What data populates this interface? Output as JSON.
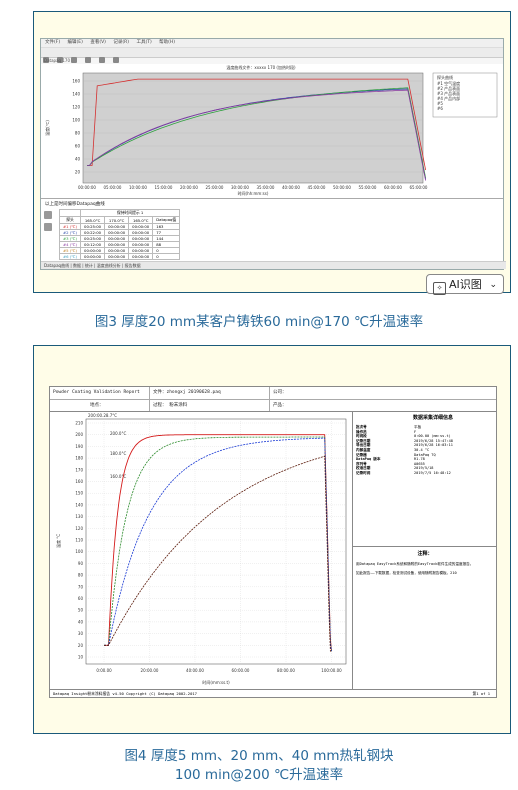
{
  "figure3": {
    "caption": "图3 厚度20 mm某客户铸铁60 min@170 ℃升温速率",
    "menu": [
      "文件(F)",
      "编辑(E)",
      "查看(V)",
      "记录(R)",
      "工具(T)",
      "帮助(H)"
    ],
    "tab_label": "Datapaq 170",
    "chart_title": "温度曲线文件：xxxxx 170 (加热时段)",
    "y_axis_label": "温度(℃)",
    "x_axis_label": "时间(hh:mm:ss)",
    "y_ticks": [
      "160",
      "140",
      "120",
      "100",
      "80",
      "60",
      "40",
      "20"
    ],
    "x_ticks": [
      "00:00:00",
      "05:00:00",
      "10:00:00",
      "15:00:00",
      "20:00:00",
      "25:00:00",
      "30:00:00",
      "35:00:00",
      "40:00:00",
      "45:00:00",
      "50:00:00",
      "55:00:00",
      "60:00:00",
      "65:00:00"
    ],
    "legend_title": "探头曲线",
    "legend_items": [
      "#1 空气温度",
      "#2 产品表面",
      "#3 产品表面",
      "#4 产品内部",
      "#5",
      "#6"
    ],
    "bottom_panel_title": "以上是时间偏移Datapaq曲线",
    "table": {
      "group_header": "保持时间提示 1",
      "headers": [
        "探头",
        "165.0°C",
        "170.0°C",
        "165.0°C",
        "Datapaq值"
      ],
      "rows": [
        [
          "#1 (℃)",
          "00:25:00",
          "00:00:00",
          "00:00:00",
          "163"
        ],
        [
          "#2 (℃)",
          "00:22:00",
          "00:00:00",
          "00:00:00",
          "77"
        ],
        [
          "#3 (℃)",
          "00:25:00",
          "00:00:00",
          "00:00:00",
          "144"
        ],
        [
          "#4 (℃)",
          "00:12:00",
          "00:00:00",
          "00:00:00",
          "88"
        ],
        [
          "#5 (℃)",
          "00:00:00",
          "00:00:00",
          "00:00:00",
          "0"
        ],
        [
          "#6 (℃)",
          "00:00:00",
          "00:00:00",
          "00:00:00",
          "0"
        ]
      ]
    },
    "status_bar": "Datapaq曲线 | 数据 | 统计 | 温度曲线分析 | 报告数据",
    "ai_button_label": "AI识图",
    "series_colors": [
      "#d43030",
      "#2a4aa8",
      "#30a040",
      "#8a3aa0"
    ]
  },
  "figure4": {
    "caption_line1": "图4 厚度5 mm、20 mm、40 mm热轧钢块",
    "caption_line2": "100 min@200 ℃升温速率",
    "header": {
      "report_title": "Powder Coating Validation Report",
      "file_label": "文件：",
      "file_value": "zhongxj 20190628.paq",
      "company_label": "公司：",
      "site_label": "地点：",
      "process_label": "过程：",
      "process_value": "粉末涂料",
      "product_label": "产品："
    },
    "info_title": "数据采集详细信息",
    "info_rows": [
      [
        "批次号",
        "平板"
      ],
      [
        "操作员",
        "F"
      ],
      [
        "时间段",
        "0:00.00 (mm:ss.t)"
      ],
      [
        "记录日期",
        "2019/6/28 15:47:48"
      ],
      [
        "导出日期",
        "2019/6/28 16:03:11"
      ],
      [
        "内部温度",
        "30.4 °C"
      ],
      [
        "记录器",
        "DataPaq TQ"
      ],
      [
        "DataPaq 版本",
        "R1.78"
      ],
      [
        "序列号",
        "A0655"
      ],
      [
        "校准日期",
        "2019/5/18"
      ],
      [
        "记录时间",
        "2019/7/5 16:48:12"
      ]
    ],
    "notes_title": "注释：",
    "notes_body": "用Datapaq EasyTrack系统和随附的EasyTrack软件生成的温度报告。",
    "notes_body2": "如此报告——下载数据，检查测试设备，使用随附报告模板。210",
    "y_axis_label": "温度 °C",
    "x_axis_label": "时间(mm:ss.t)",
    "y_ticks": [
      "210",
      "200",
      "190",
      "180",
      "170",
      "160",
      "150",
      "140",
      "130",
      "120",
      "110",
      "100",
      "90",
      "80",
      "70",
      "60",
      "50",
      "40",
      "30",
      "20",
      "10"
    ],
    "x_ticks": [
      "0:00.00",
      "20:00.00",
      "40:00.00",
      "60:00.00",
      "80:00.00",
      "100:00.00"
    ],
    "top_marker": "200:00.28.7°C",
    "markers": [
      "200.0°C",
      "180.0°C",
      "160.0°C"
    ],
    "footer_left": "Datapaq Insight粉末涂料报告 v4.50  Copyright (C) Datapaq 2002-2017",
    "footer_right": "第1 of 1",
    "series_colors": [
      "#d41a1a",
      "#2a8a2a",
      "#1a3ad4",
      "#5a1a0a"
    ]
  }
}
